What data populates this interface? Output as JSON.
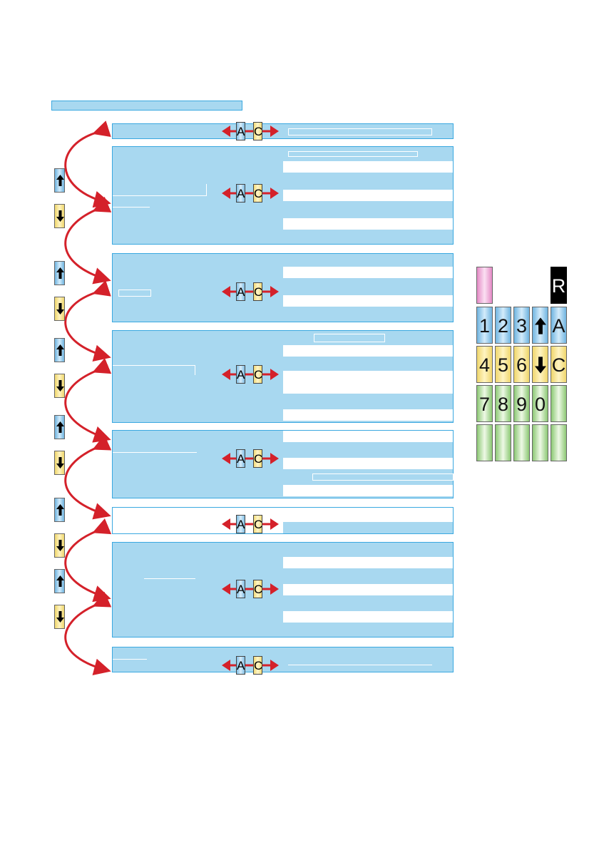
{
  "colors": {
    "panel_fill": "#a8d8f0",
    "panel_border": "#3aa8e0",
    "arrow_red": "#d4212a",
    "key_blue": "#6fb4e0",
    "key_yellow": "#efd66c",
    "key_green": "#8cc874",
    "key_pink": "#e48ac6"
  },
  "ac_widget": {
    "left_label": "A",
    "right_label": "C"
  },
  "keypad": {
    "rows": [
      [
        "",
        "",
        "",
        "",
        "R"
      ],
      [
        "1",
        "2",
        "3",
        "up-arrow-icon",
        "A"
      ],
      [
        "4",
        "5",
        "6",
        "down-arrow-icon",
        "C"
      ],
      [
        "7",
        "8",
        "9",
        "0",
        ""
      ],
      [
        "",
        "",
        "",
        "",
        ""
      ]
    ]
  }
}
